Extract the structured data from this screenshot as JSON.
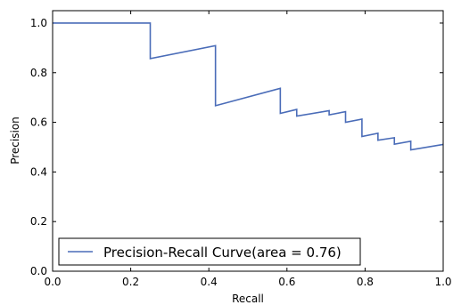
{
  "chart_data": {
    "type": "line",
    "xlabel": "Recall",
    "ylabel": "Precision",
    "xlim": [
      0.0,
      1.0
    ],
    "ylim": [
      0.0,
      1.05
    ],
    "xticks": [
      "0.0",
      "0.2",
      "0.4",
      "0.6",
      "0.8",
      "1.0"
    ],
    "yticks": [
      "0.0",
      "0.2",
      "0.4",
      "0.6",
      "0.8",
      "1.0"
    ],
    "grid": false,
    "legend_position": "lower-left",
    "series": [
      {
        "name": "Precision-Recall Curve(area = 0.76)",
        "color": "#4a6cb8",
        "x": [
          0.0,
          0.25,
          0.25,
          0.417,
          0.417,
          0.583,
          0.583,
          0.625,
          0.625,
          0.708,
          0.708,
          0.75,
          0.75,
          0.792,
          0.792,
          0.833,
          0.833,
          0.875,
          0.875,
          0.917,
          0.917,
          1.0
        ],
        "y": [
          1.0,
          1.0,
          0.857,
          0.909,
          0.667,
          0.737,
          0.636,
          0.652,
          0.625,
          0.647,
          0.63,
          0.643,
          0.6,
          0.613,
          0.543,
          0.556,
          0.528,
          0.538,
          0.512,
          0.524,
          0.489,
          0.511
        ]
      }
    ]
  }
}
